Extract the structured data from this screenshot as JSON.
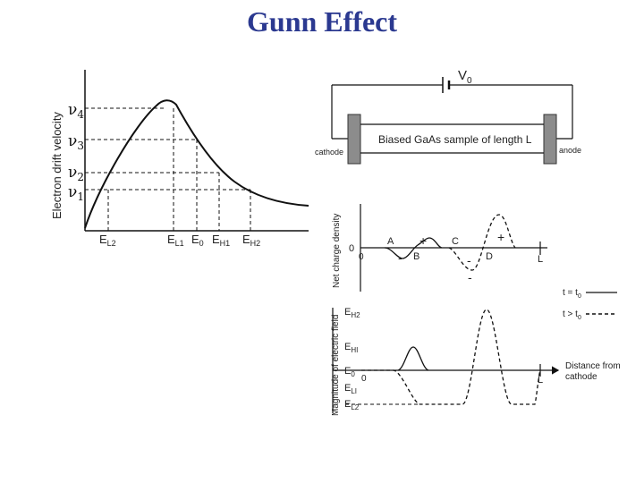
{
  "title": "Gunn Effect",
  "left_plot": {
    "ylabel": "Electron drift velocity",
    "v_labels": [
      {
        "sym": "ν",
        "sub": "4"
      },
      {
        "sym": "ν",
        "sub": "3"
      },
      {
        "sym": "ν",
        "sub": "2"
      },
      {
        "sym": "ν",
        "sub": "1"
      }
    ],
    "e_labels": [
      {
        "sym": "E",
        "sub": "L2"
      },
      {
        "sym": "E",
        "sub": "L1"
      },
      {
        "sym": "E",
        "sub": "0"
      },
      {
        "sym": "E",
        "sub": "H1"
      },
      {
        "sym": "E",
        "sub": "H2"
      }
    ]
  },
  "circuit": {
    "source_label": {
      "sym": "V",
      "sub": "0"
    },
    "sample_label": "Biased GaAs sample of length L",
    "cathode": "cathode",
    "anode": "anode"
  },
  "charge_plot": {
    "ylabel": "Net charge density",
    "zero": "0",
    "origin": "0",
    "points": [
      "A",
      "B",
      "C",
      "D"
    ],
    "end": "L",
    "signs": [
      "+",
      "+",
      "-",
      "-",
      "-"
    ]
  },
  "legend": {
    "solid": "t = t",
    "solid_sub": "0",
    "dashed": "t > t",
    "dashed_sub": "0"
  },
  "field_plot": {
    "ylabel": "Magnitude of electric field",
    "e_labels": [
      {
        "sym": "E",
        "sub": "H2"
      },
      {
        "sym": "E",
        "sub": "HI"
      },
      {
        "sym": "E",
        "sub": "0"
      },
      {
        "sym": "E",
        "sub": "LI"
      },
      {
        "sym": "E",
        "sub": "L2"
      }
    ],
    "origin": "0",
    "end": "L",
    "xlabel_line1": "Distance from",
    "xlabel_line2": "cathode"
  }
}
